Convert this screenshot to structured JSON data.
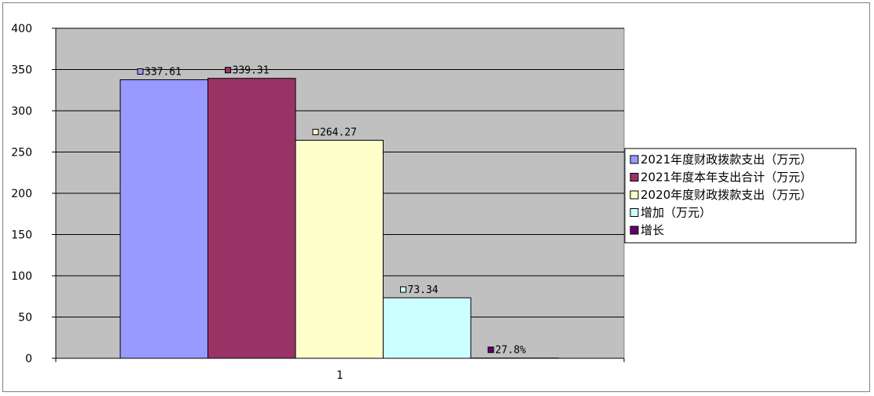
{
  "chart_data": {
    "type": "bar",
    "categories": [
      "1"
    ],
    "series": [
      {
        "name": "2021年度财政拨款支出（万元）",
        "values": [
          337.61
        ],
        "label": "337.61",
        "color": "#9999ff"
      },
      {
        "name": "2021年度本年支出合计（万元）",
        "values": [
          339.31
        ],
        "label": "339.31",
        "color": "#993366"
      },
      {
        "name": "2020年度财政拨款支出（万元）",
        "values": [
          264.27
        ],
        "label": "264.27",
        "color": "#ffffcc"
      },
      {
        "name": "增加（万元）",
        "values": [
          73.34
        ],
        "label": "73.34",
        "color": "#ccffff"
      },
      {
        "name": "增长",
        "values": [
          0.278
        ],
        "label": "27.8%",
        "color": "#660066"
      }
    ],
    "ylim": [
      0,
      400
    ],
    "yticks": [
      "0",
      "50",
      "100",
      "150",
      "200",
      "250",
      "300",
      "350",
      "400"
    ],
    "grid": true,
    "plot_background": "#c0c0c0",
    "legend_position": "right",
    "title": "",
    "xlabel": "",
    "ylabel": ""
  }
}
